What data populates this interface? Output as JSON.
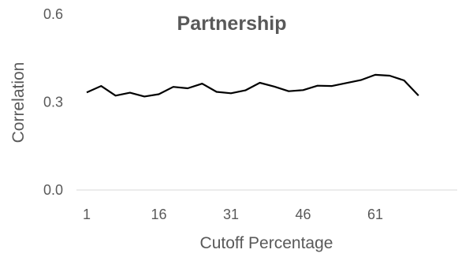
{
  "chart_data": {
    "type": "line",
    "title": "Partnership",
    "xlabel": "Cutoff Percentage",
    "ylabel": "Correlation",
    "x_tick_labels": [
      "1",
      "16",
      "31",
      "46",
      "61"
    ],
    "y_tick_labels": [
      "0.0",
      "0.3",
      "0.6"
    ],
    "ylim": [
      0,
      0.6
    ],
    "grid": false,
    "legend": "none",
    "line_color": "#000000",
    "x": [
      1,
      4,
      7,
      10,
      13,
      16,
      19,
      22,
      25,
      28,
      31,
      34,
      37,
      40,
      43,
      46,
      49,
      52,
      55,
      58,
      61,
      64,
      67,
      70
    ],
    "values": [
      0.333,
      0.355,
      0.322,
      0.332,
      0.319,
      0.327,
      0.352,
      0.347,
      0.363,
      0.335,
      0.33,
      0.34,
      0.366,
      0.353,
      0.337,
      0.341,
      0.356,
      0.355,
      0.365,
      0.375,
      0.393,
      0.39,
      0.374,
      0.322
    ]
  }
}
